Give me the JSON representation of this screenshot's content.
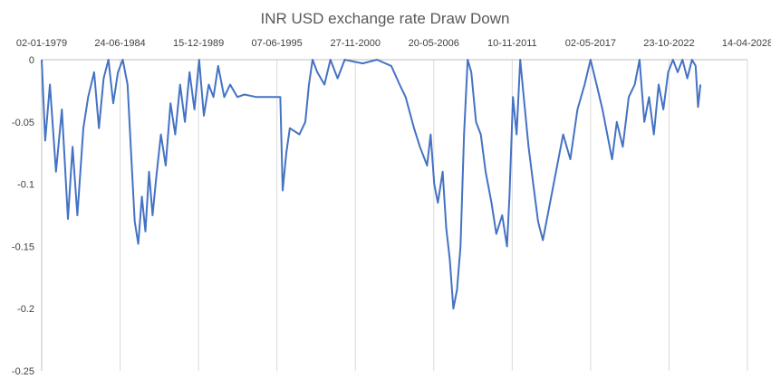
{
  "chart_data": {
    "type": "line",
    "title": "INR USD exchange rate Draw Down",
    "xlabel": "",
    "ylabel": "",
    "x_axis_position": "top",
    "grid": {
      "vertical": true,
      "horizontal": false
    },
    "xlim": [
      "1979-01-02",
      "2028-04-14"
    ],
    "ylim": [
      -0.25,
      0
    ],
    "x_ticks": [
      "02-01-1979",
      "24-06-1984",
      "15-12-1989",
      "07-06-1995",
      "27-11-2000",
      "20-05-2006",
      "10-11-2011",
      "02-05-2017",
      "23-10-2022",
      "14-04-2028"
    ],
    "y_ticks": [
      "0",
      "-0.05",
      "-0.1",
      "-0.15",
      "-0.2",
      "-0.25"
    ],
    "line_color": "#4472c4",
    "series": [
      {
        "points": [
          [
            "1979-01-02",
            0.0
          ],
          [
            "1979-04-01",
            -0.065
          ],
          [
            "1979-08-01",
            -0.02
          ],
          [
            "1980-01-01",
            -0.09
          ],
          [
            "1980-06-01",
            -0.04
          ],
          [
            "1980-11-01",
            -0.128
          ],
          [
            "1981-03-01",
            -0.07
          ],
          [
            "1981-07-01",
            -0.125
          ],
          [
            "1981-12-01",
            -0.055
          ],
          [
            "1982-04-01",
            -0.03
          ],
          [
            "1982-09-01",
            -0.01
          ],
          [
            "1983-01-01",
            -0.055
          ],
          [
            "1983-05-01",
            -0.015
          ],
          [
            "1983-09-01",
            0.0
          ],
          [
            "1984-01-01",
            -0.035
          ],
          [
            "1984-05-01",
            -0.01
          ],
          [
            "1984-09-01",
            0.0
          ],
          [
            "1985-01-01",
            -0.02
          ],
          [
            "1985-04-01",
            -0.075
          ],
          [
            "1985-07-01",
            -0.13
          ],
          [
            "1985-10-01",
            -0.148
          ],
          [
            "1986-01-01",
            -0.11
          ],
          [
            "1986-04-01",
            -0.138
          ],
          [
            "1986-07-01",
            -0.09
          ],
          [
            "1986-10-01",
            -0.125
          ],
          [
            "1987-01-01",
            -0.095
          ],
          [
            "1987-05-01",
            -0.06
          ],
          [
            "1987-09-01",
            -0.085
          ],
          [
            "1988-01-01",
            -0.035
          ],
          [
            "1988-05-01",
            -0.06
          ],
          [
            "1988-09-01",
            -0.02
          ],
          [
            "1989-01-01",
            -0.05
          ],
          [
            "1989-05-01",
            -0.01
          ],
          [
            "1989-09-01",
            -0.04
          ],
          [
            "1990-01-01",
            0.0
          ],
          [
            "1990-05-01",
            -0.045
          ],
          [
            "1990-09-01",
            -0.02
          ],
          [
            "1991-01-01",
            -0.03
          ],
          [
            "1991-05-01",
            -0.005
          ],
          [
            "1991-10-01",
            -0.03
          ],
          [
            "1992-03-01",
            -0.02
          ],
          [
            "1992-09-01",
            -0.03
          ],
          [
            "1993-03-01",
            -0.028
          ],
          [
            "1994-01-01",
            -0.03
          ],
          [
            "1995-01-01",
            -0.03
          ],
          [
            "1995-09-01",
            -0.03
          ],
          [
            "1995-11-01",
            -0.105
          ],
          [
            "1996-02-01",
            -0.075
          ],
          [
            "1996-05-01",
            -0.055
          ],
          [
            "1997-01-01",
            -0.06
          ],
          [
            "1997-06-01",
            -0.05
          ],
          [
            "1997-09-01",
            -0.02
          ],
          [
            "1997-12-01",
            0.0
          ],
          [
            "1998-04-01",
            -0.01
          ],
          [
            "1998-10-01",
            -0.02
          ],
          [
            "1999-03-01",
            0.0
          ],
          [
            "1999-09-01",
            -0.015
          ],
          [
            "2000-03-01",
            0.0
          ],
          [
            "2001-06-01",
            -0.003
          ],
          [
            "2002-06-01",
            0.0
          ],
          [
            "2003-06-01",
            -0.005
          ],
          [
            "2004-01-01",
            -0.02
          ],
          [
            "2004-06-01",
            -0.03
          ],
          [
            "2005-01-01",
            -0.055
          ],
          [
            "2005-06-01",
            -0.07
          ],
          [
            "2005-12-01",
            -0.085
          ],
          [
            "2006-03-01",
            -0.06
          ],
          [
            "2006-06-01",
            -0.1
          ],
          [
            "2006-09-01",
            -0.115
          ],
          [
            "2007-01-01",
            -0.09
          ],
          [
            "2007-04-01",
            -0.135
          ],
          [
            "2007-07-01",
            -0.16
          ],
          [
            "2007-10-01",
            -0.2
          ],
          [
            "2008-01-01",
            -0.185
          ],
          [
            "2008-04-01",
            -0.15
          ],
          [
            "2008-07-01",
            -0.06
          ],
          [
            "2008-10-01",
            0.0
          ],
          [
            "2009-01-01",
            -0.01
          ],
          [
            "2009-05-01",
            -0.05
          ],
          [
            "2009-09-01",
            -0.06
          ],
          [
            "2010-01-01",
            -0.09
          ],
          [
            "2010-06-01",
            -0.115
          ],
          [
            "2010-10-01",
            -0.14
          ],
          [
            "2011-03-01",
            -0.125
          ],
          [
            "2011-07-01",
            -0.15
          ],
          [
            "2011-09-01",
            -0.11
          ],
          [
            "2011-12-01",
            -0.03
          ],
          [
            "2012-03-01",
            -0.06
          ],
          [
            "2012-06-01",
            0.0
          ],
          [
            "2012-09-01",
            -0.03
          ],
          [
            "2013-01-01",
            -0.07
          ],
          [
            "2013-05-01",
            -0.1
          ],
          [
            "2013-09-01",
            -0.13
          ],
          [
            "2014-01-01",
            -0.145
          ],
          [
            "2014-06-01",
            -0.12
          ],
          [
            "2014-12-01",
            -0.09
          ],
          [
            "2015-06-01",
            -0.06
          ],
          [
            "2015-12-01",
            -0.08
          ],
          [
            "2016-06-01",
            -0.04
          ],
          [
            "2016-12-01",
            -0.02
          ],
          [
            "2017-05-01",
            0.0
          ],
          [
            "2017-10-01",
            -0.02
          ],
          [
            "2018-03-01",
            -0.04
          ],
          [
            "2018-07-01",
            -0.06
          ],
          [
            "2018-11-01",
            -0.08
          ],
          [
            "2019-03-01",
            -0.05
          ],
          [
            "2019-08-01",
            -0.07
          ],
          [
            "2020-01-01",
            -0.03
          ],
          [
            "2020-06-01",
            -0.02
          ],
          [
            "2020-10-01",
            0.0
          ],
          [
            "2021-02-01",
            -0.05
          ],
          [
            "2021-06-01",
            -0.03
          ],
          [
            "2021-10-01",
            -0.06
          ],
          [
            "2022-02-01",
            -0.02
          ],
          [
            "2022-06-01",
            -0.04
          ],
          [
            "2022-10-01",
            -0.01
          ],
          [
            "2023-02-01",
            0.0
          ],
          [
            "2023-06-01",
            -0.01
          ],
          [
            "2023-10-01",
            0.0
          ],
          [
            "2024-02-01",
            -0.015
          ],
          [
            "2024-06-01",
            0.0
          ],
          [
            "2024-09-01",
            -0.005
          ],
          [
            "2024-11-01",
            -0.038
          ],
          [
            "2025-01-01",
            -0.02
          ]
        ]
      }
    ]
  }
}
